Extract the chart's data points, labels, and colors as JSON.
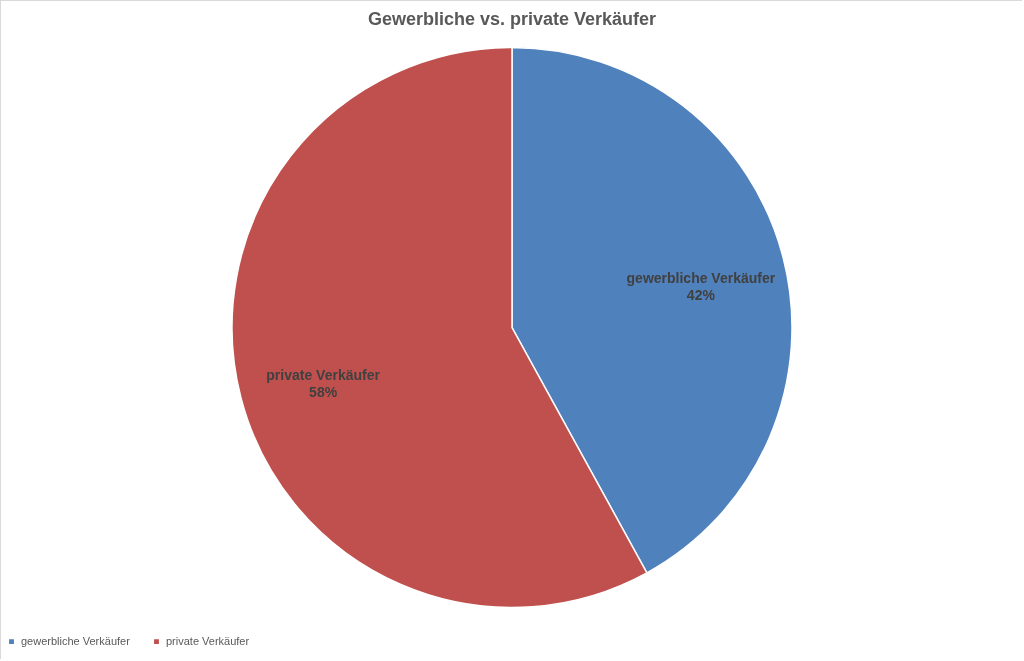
{
  "chart_data": {
    "type": "pie",
    "title": "Gewerbliche vs. private Verkäufer",
    "categories": [
      "gewerbliche Verkäufer",
      "private Verkäufer"
    ],
    "values": [
      42,
      58
    ],
    "value_labels": [
      "42%",
      "58%"
    ],
    "colors": [
      "#4f81bd",
      "#c0504d"
    ],
    "legend": "bottom"
  }
}
